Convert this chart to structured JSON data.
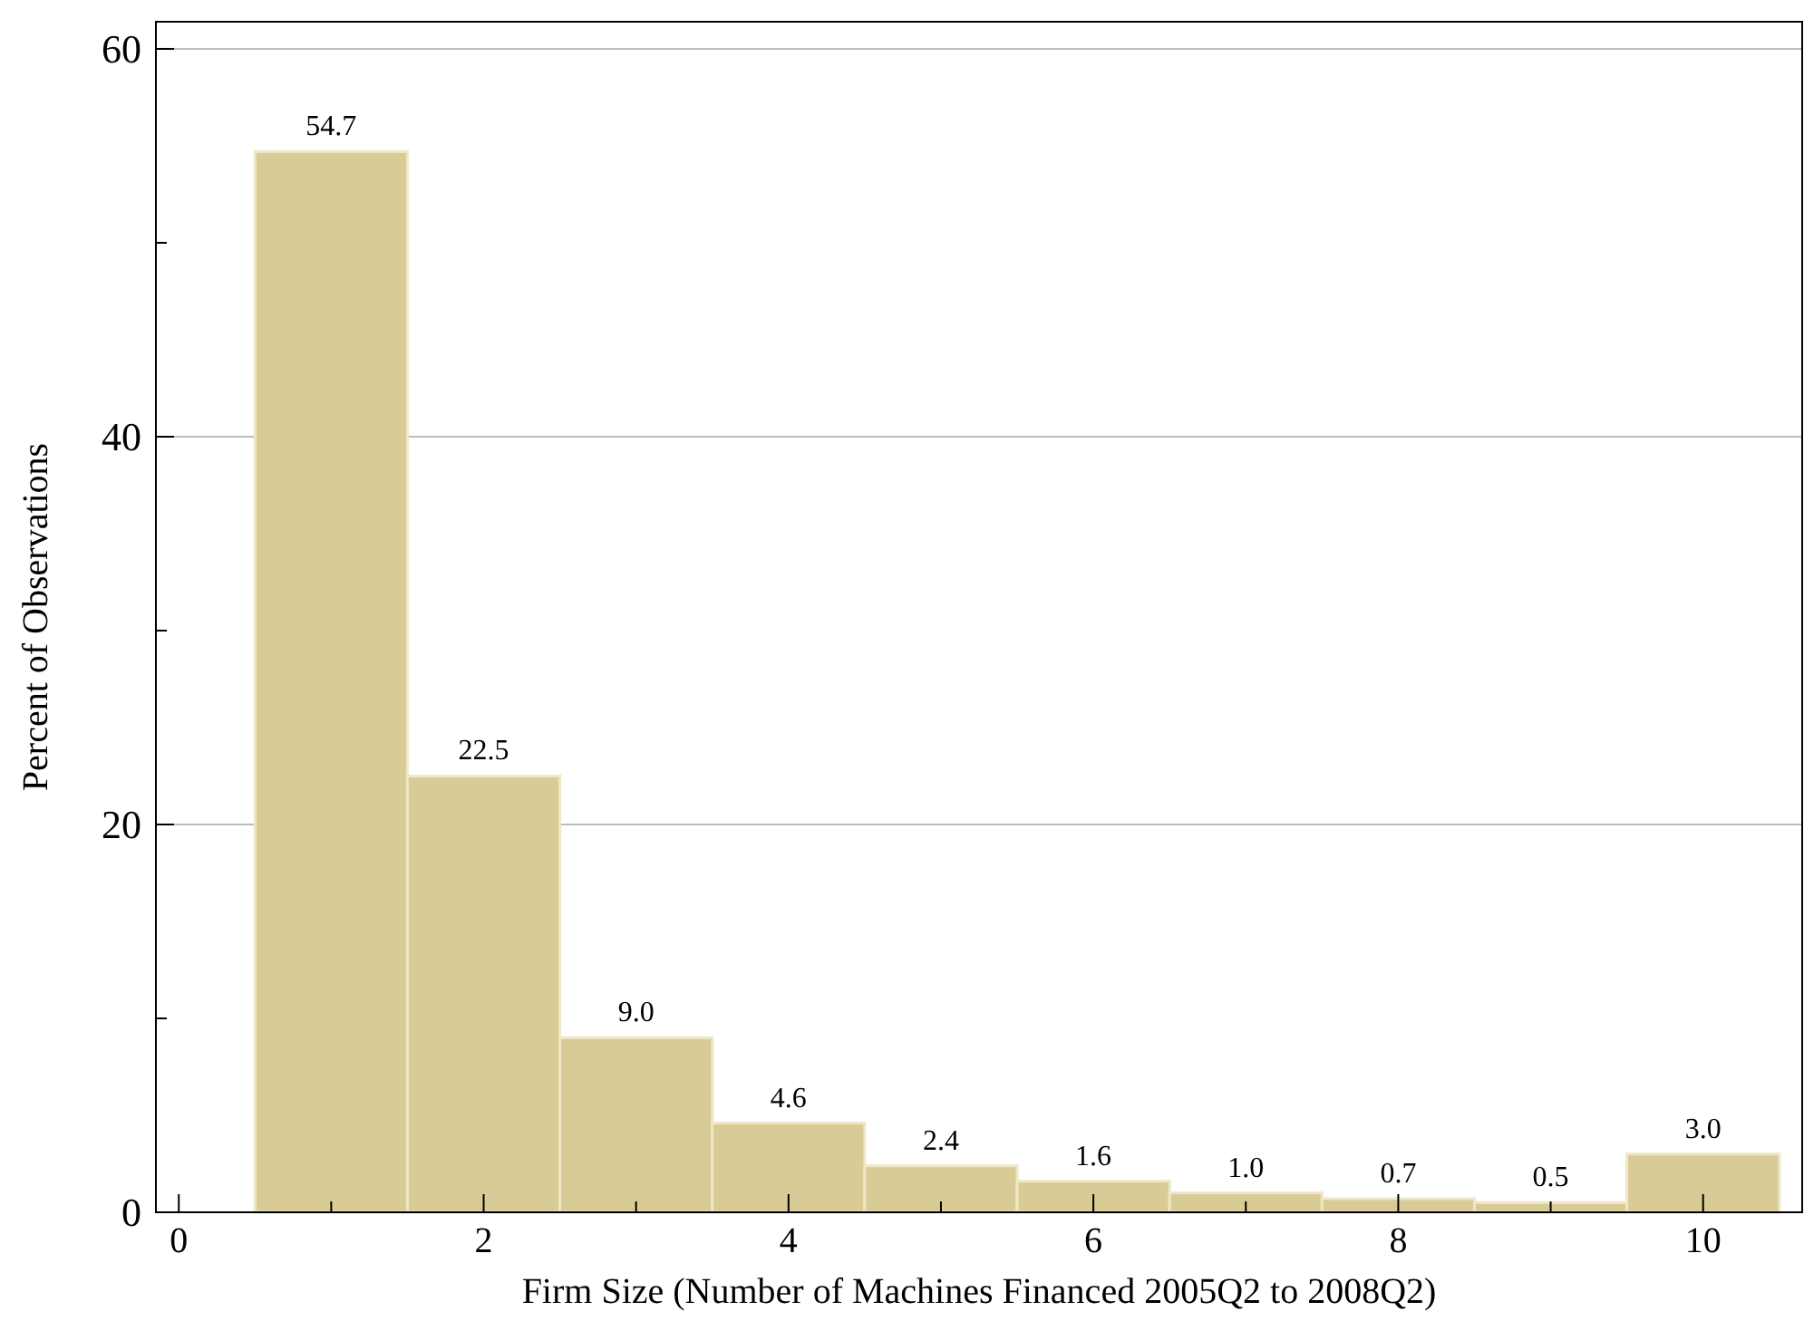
{
  "chart_data": {
    "type": "histogram",
    "xlabel": "Firm Size (Number of Machines Financed 2005Q2 to 2008Q2)",
    "ylabel": "Percent of Observations",
    "bins": [
      0.5,
      1.5,
      2.5,
      3.5,
      4.5,
      5.5,
      6.5,
      7.5,
      8.5,
      9.5,
      10.5
    ],
    "values": [
      54.7,
      22.5,
      9.0,
      4.6,
      2.4,
      1.6,
      1.0,
      0.7,
      0.5,
      3.0
    ],
    "value_labels": [
      "54.7",
      "22.5",
      "9.0",
      "4.6",
      "2.4",
      "1.6",
      "1.0",
      "0.7",
      "0.5",
      "3.0"
    ],
    "color": "#d8cb95",
    "xlim": [
      -0.15,
      10.65
    ],
    "xticks": [
      0,
      {
        "value": 1,
        "label": null
      },
      2,
      {
        "value": 3,
        "label": null
      },
      4,
      {
        "value": 5,
        "label": null
      },
      6,
      {
        "value": 7,
        "label": null
      },
      8,
      {
        "value": 9,
        "label": null
      },
      10
    ],
    "ylim": [
      0,
      61.4
    ],
    "yticks": [
      0,
      {
        "value": 10,
        "label": null
      },
      20,
      {
        "value": 30,
        "label": null
      },
      40,
      {
        "value": 50,
        "label": null
      },
      60
    ],
    "grid": "y"
  }
}
